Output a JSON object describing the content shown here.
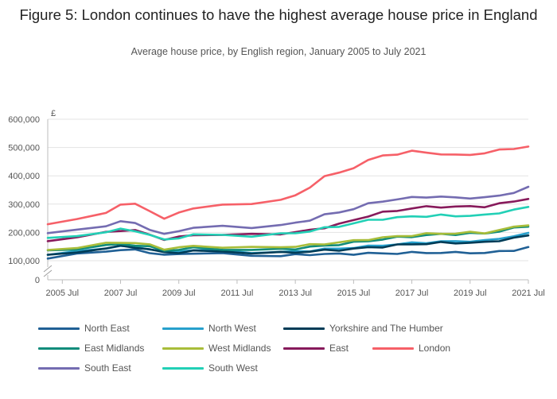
{
  "title": "Figure 5: London continues to have the highest average house price in England",
  "subtitle": "Average house price, by English region, January 2005 to July 2021",
  "chart_data": {
    "type": "line",
    "title": "Figure 5: London continues to have the highest average house price in England",
    "subtitle": "Average house price, by English region, January 2005 to July 2021",
    "y_unit": "£",
    "xlabel": "",
    "ylabel": "",
    "grid": true,
    "legend_position": "bottom",
    "y_axis_break": true,
    "ylim": [
      0,
      600000
    ],
    "y_ticks": [
      "0",
      "100,000",
      "200,000",
      "300,000",
      "400,000",
      "500,000",
      "600,000"
    ],
    "y_tick_values": [
      0,
      100000,
      200000,
      300000,
      400000,
      500000,
      600000
    ],
    "x_ticks": [
      "2005 Jul",
      "2007 Jul",
      "2009 Jul",
      "2011 Jul",
      "2013 Jul",
      "2015 Jul",
      "2017 Jul",
      "2019 Jul",
      "2021 Jul"
    ],
    "x_tick_values": [
      2005.5,
      2007.5,
      2009.5,
      2011.5,
      2013.5,
      2015.5,
      2017.5,
      2019.5,
      2021.5
    ],
    "xlim": [
      2005.0,
      2021.5
    ],
    "x": [
      2005.0,
      2006.0,
      2007.0,
      2007.5,
      2008.0,
      2008.5,
      2009.0,
      2009.5,
      2010.0,
      2011.0,
      2012.0,
      2013.0,
      2013.5,
      2014.0,
      2014.5,
      2015.0,
      2015.5,
      2016.0,
      2016.5,
      2017.0,
      2017.5,
      2018.0,
      2018.5,
      2019.0,
      2019.5,
      2020.0,
      2020.5,
      2021.0,
      2021.5
    ],
    "series": [
      {
        "name": "North East",
        "color": "#206095",
        "values": [
          110000,
          122000,
          134000,
          138000,
          137000,
          130000,
          120000,
          122000,
          128000,
          124000,
          118000,
          118000,
          120000,
          122000,
          124000,
          123000,
          124000,
          126000,
          125000,
          127000,
          128000,
          128000,
          129000,
          128000,
          129000,
          127000,
          132000,
          138000,
          146000
        ]
      },
      {
        "name": "North West",
        "color": "#27a0cc",
        "values": [
          120000,
          132000,
          146000,
          150000,
          149000,
          142000,
          130000,
          134000,
          138000,
          135000,
          130000,
          130000,
          132000,
          136000,
          140000,
          143000,
          147000,
          150000,
          155000,
          158000,
          162000,
          165000,
          167000,
          168000,
          170000,
          170000,
          178000,
          188000,
          195000
        ]
      },
      {
        "name": "Yorkshire and The Humber",
        "color": "#003c57",
        "values": [
          118000,
          130000,
          145000,
          150000,
          148000,
          140000,
          128000,
          130000,
          134000,
          132000,
          128000,
          128000,
          130000,
          133000,
          136000,
          138000,
          142000,
          146000,
          150000,
          155000,
          158000,
          161000,
          163000,
          163000,
          164000,
          164000,
          172000,
          180000,
          188000
        ]
      },
      {
        "name": "East Midlands",
        "color": "#118c7b",
        "values": [
          134000,
          143000,
          154000,
          158000,
          156000,
          148000,
          136000,
          140000,
          144000,
          141000,
          138000,
          140000,
          143000,
          148000,
          153000,
          158000,
          164000,
          170000,
          176000,
          182000,
          186000,
          190000,
          193000,
          194000,
          196000,
          196000,
          205000,
          214000,
          222000
        ]
      },
      {
        "name": "West Midlands",
        "color": "#a8bd3a",
        "values": [
          138000,
          147000,
          160000,
          165000,
          163000,
          155000,
          142000,
          146000,
          151000,
          149000,
          146000,
          148000,
          151000,
          155000,
          160000,
          165000,
          170000,
          176000,
          181000,
          186000,
          190000,
          194000,
          196000,
          197000,
          199000,
          199000,
          208000,
          218000,
          228000
        ]
      },
      {
        "name": "East",
        "color": "#871a5b",
        "values": [
          172000,
          182000,
          200000,
          208000,
          206000,
          192000,
          176000,
          182000,
          192000,
          192000,
          192000,
          196000,
          200000,
          208000,
          218000,
          228000,
          244000,
          258000,
          270000,
          278000,
          285000,
          290000,
          291000,
          290000,
          292000,
          292000,
          300000,
          310000,
          320000
        ]
      },
      {
        "name": "London",
        "color": "#f66068",
        "values": [
          232000,
          244000,
          270000,
          300000,
          298000,
          278000,
          248000,
          268000,
          288000,
          296000,
          300000,
          318000,
          328000,
          360000,
          400000,
          408000,
          430000,
          455000,
          470000,
          478000,
          486000,
          482000,
          478000,
          472000,
          476000,
          480000,
          490000,
          498000,
          502000
        ]
      },
      {
        "name": "South East",
        "color": "#746cb1",
        "values": [
          198000,
          207000,
          225000,
          238000,
          232000,
          212000,
          192000,
          205000,
          218000,
          220000,
          218000,
          226000,
          232000,
          245000,
          262000,
          270000,
          285000,
          300000,
          310000,
          318000,
          322000,
          326000,
          326000,
          322000,
          323000,
          322000,
          330000,
          342000,
          358000
        ]
      },
      {
        "name": "South West",
        "color": "#22d0b6",
        "values": [
          178000,
          187000,
          203000,
          210000,
          206000,
          192000,
          172000,
          182000,
          192000,
          190000,
          188000,
          194000,
          198000,
          205000,
          215000,
          222000,
          232000,
          242000,
          248000,
          252000,
          256000,
          258000,
          260000,
          258000,
          260000,
          260000,
          270000,
          280000,
          288000
        ]
      }
    ]
  }
}
